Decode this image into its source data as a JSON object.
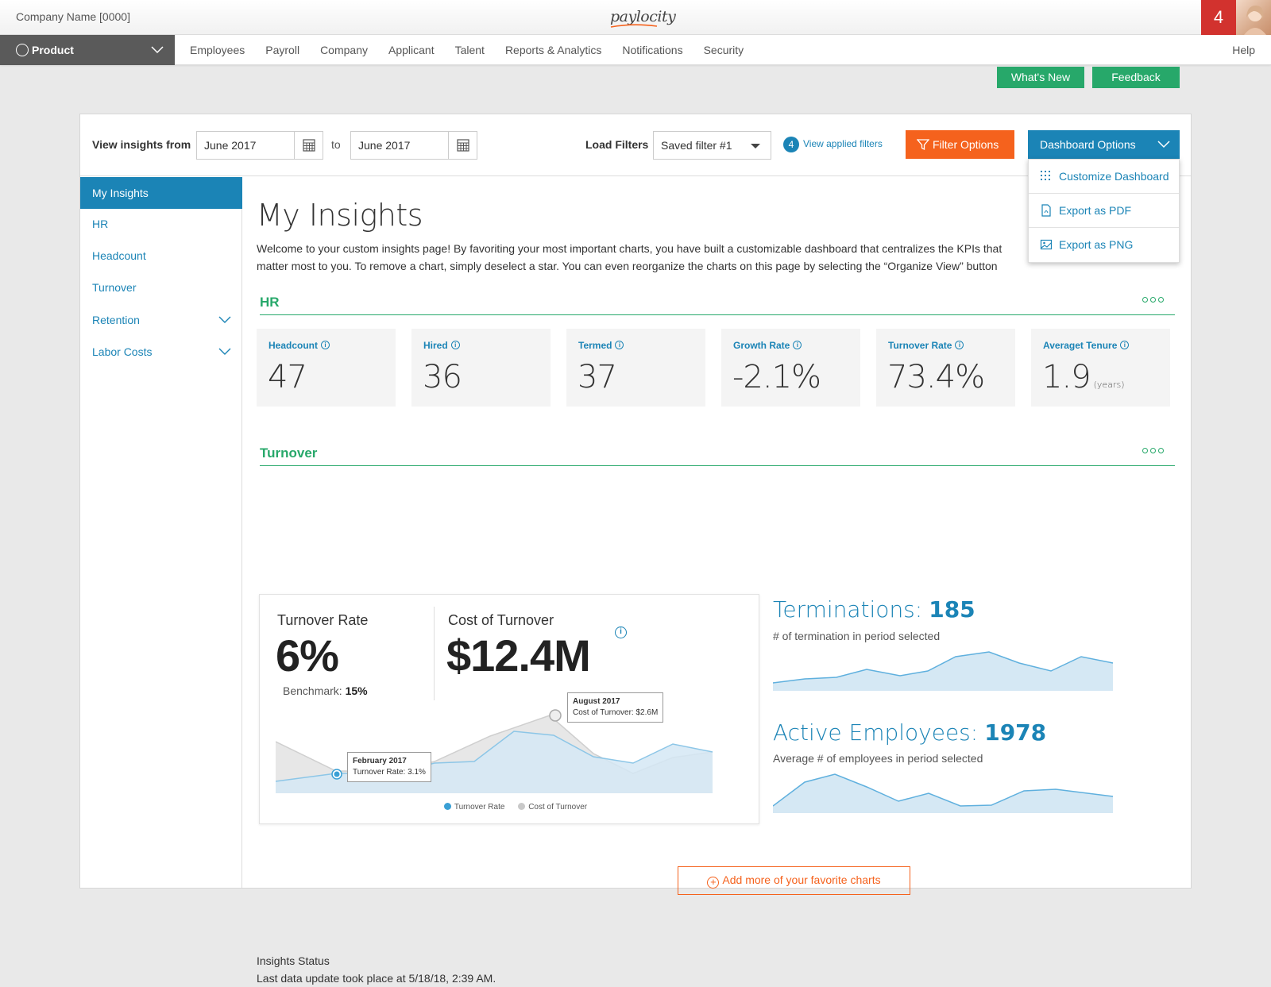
{
  "header": {
    "company": "Company Name [0000]",
    "logo": "paylocity",
    "notification_count": "4"
  },
  "nav": {
    "product": "Product",
    "items": [
      "Employees",
      "Payroll",
      "Company",
      "Applicant",
      "Talent",
      "Reports & Analytics",
      "Notifications",
      "Security"
    ],
    "help": "Help"
  },
  "actions": {
    "whats_new": "What's New",
    "feedback": "Feedback"
  },
  "filters": {
    "view_from_label": "View insights from",
    "from_date": "June 2017",
    "to_label": "to",
    "to_date": "June 2017",
    "load_filters_label": "Load Filters",
    "saved_filter": "Saved filter #1",
    "applied_count": "4",
    "view_applied": "View applied filters",
    "filter_options": "Filter Options",
    "dashboard_options": "Dashboard Options"
  },
  "dashboard_menu": [
    {
      "label": "Customize Dashboard",
      "icon": "grid-icon"
    },
    {
      "label": "Export as PDF",
      "icon": "pdf-icon"
    },
    {
      "label": "Export as PNG",
      "icon": "image-icon"
    }
  ],
  "sidebar": [
    {
      "label": "My Insights",
      "active": true
    },
    {
      "label": "HR"
    },
    {
      "label": "Headcount"
    },
    {
      "label": "Turnover"
    },
    {
      "label": "Retention",
      "expandable": true
    },
    {
      "label": "Labor Costs",
      "expandable": true
    }
  ],
  "main": {
    "title": "My Insights",
    "description": "Welcome to your custom insights page! By favoriting your most important charts, you have built a customizable dashboard that centralizes the KPIs that matter most to you. To remove a chart, simply deselect a star. You can even reorganize the charts on this page by selecting the “Organize View” button above.",
    "hr_section": "HR",
    "turnover_section": "Turnover"
  },
  "kpis": [
    {
      "label": "Headcount",
      "value": "47",
      "unit": ""
    },
    {
      "label": "Hired",
      "value": "36",
      "unit": ""
    },
    {
      "label": "Termed",
      "value": "37",
      "unit": ""
    },
    {
      "label": "Growth Rate",
      "value": "-2.1%",
      "unit": ""
    },
    {
      "label": "Turnover Rate",
      "value": "73.4%",
      "unit": ""
    },
    {
      "label": "Averaget Tenure",
      "value": "1.9",
      "unit": "(years)"
    }
  ],
  "turnover": {
    "rate_label": "Turnover Rate",
    "rate_value": "6%",
    "benchmark_label": "Benchmark:",
    "benchmark_value": "15%",
    "cost_label": "Cost of Turnover",
    "cost_value": "$12.4M",
    "tip1_title": "August 2017",
    "tip1_text": "Cost of Turnover: $2.6M",
    "tip2_title": "February 2017",
    "tip2_text": "Turnover Rate: 3.1%",
    "legend_rate": "Turnover Rate",
    "legend_cost": "Cost of Turnover",
    "rate_color": "#3aa0d5",
    "cost_color": "#c9c9c9"
  },
  "terminations": {
    "label": "Terminations:",
    "value": "185",
    "sub": "# of termination in period selected"
  },
  "active": {
    "label": "Active Employees:",
    "value": "1978",
    "sub": "Average # of employees in period selected"
  },
  "add_more": "Add more of your favorite charts",
  "status": {
    "title": "Insights Status",
    "text": "Last data update took place at 5/18/18, 2:39 AM."
  },
  "colors": {
    "blue": "#1b84b6",
    "green": "#27a86a",
    "orange": "#f5621d",
    "red": "#d2322e"
  }
}
